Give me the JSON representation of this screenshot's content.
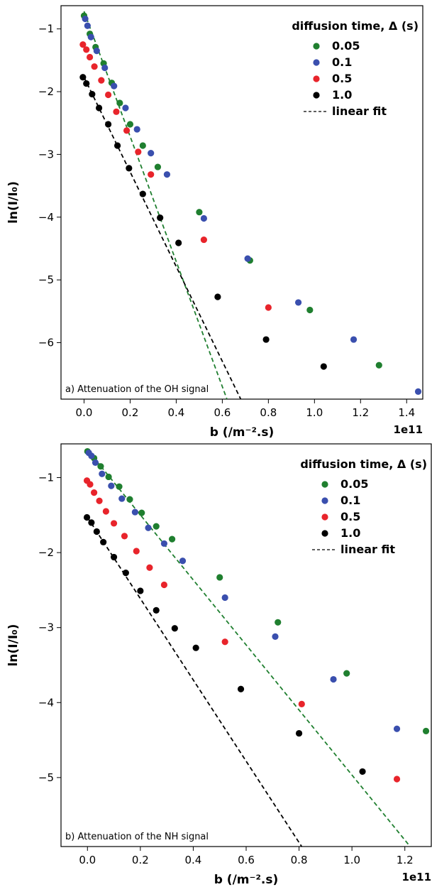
{
  "colors": {
    "green": "#1f7f2f",
    "blue": "#3a4fae",
    "red": "#e8242b",
    "black": "#000000"
  },
  "legend": {
    "title": "diffusion time, Δ (s)",
    "entries": [
      "0.05",
      "0.1",
      "0.5",
      "1.0"
    ],
    "fit_label": "linear fit"
  },
  "chart_data": [
    {
      "type": "scatter",
      "annotation": "a) Attenuation of the OH signal",
      "xlabel": "b (/m⁻².s)",
      "ylabel": "ln(I/I₀)",
      "x_multiplier": "1e11",
      "xlim": [
        -0.1,
        1.47
      ],
      "ylim": [
        -6.9,
        -0.63
      ],
      "xticks": [
        0.0,
        0.2,
        0.4,
        0.6,
        0.8,
        1.0,
        1.2,
        1.4
      ],
      "xtick_labels": [
        "0.0",
        "0.2",
        "0.4",
        "0.6",
        "0.8",
        "1.0",
        "1.2",
        "1.4"
      ],
      "yticks": [
        -1,
        -2,
        -3,
        -4,
        -5,
        -6
      ],
      "ytick_labels": [
        "−1",
        "−2",
        "−3",
        "−4",
        "−5",
        "−6"
      ],
      "legend_position": "top-right",
      "series": [
        {
          "name": "0.05",
          "color": "green",
          "x": [
            0.0,
            0.025,
            0.05,
            0.085,
            0.12,
            0.155,
            0.2,
            0.255,
            0.32,
            0.5,
            0.72,
            0.98,
            1.28
          ],
          "y": [
            -0.79,
            -1.08,
            -1.29,
            -1.55,
            -1.86,
            -2.18,
            -2.52,
            -2.86,
            -3.2,
            -3.92,
            -4.69,
            -5.48,
            -6.36
          ]
        },
        {
          "name": "0.1",
          "color": "blue",
          "x": [
            0.005,
            0.015,
            0.03,
            0.055,
            0.09,
            0.13,
            0.18,
            0.23,
            0.29,
            0.36,
            0.52,
            0.71,
            0.93,
            1.17,
            1.45
          ],
          "y": [
            -0.84,
            -0.95,
            -1.13,
            -1.35,
            -1.62,
            -1.91,
            -2.26,
            -2.6,
            -2.98,
            -3.32,
            -4.02,
            -4.66,
            -5.36,
            -5.95,
            -6.78
          ]
        },
        {
          "name": "0.5",
          "color": "red",
          "x": [
            -0.005,
            0.01,
            0.025,
            0.045,
            0.075,
            0.105,
            0.14,
            0.185,
            0.235,
            0.29,
            0.52,
            0.8
          ],
          "y": [
            -1.25,
            -1.33,
            -1.45,
            -1.6,
            -1.82,
            -2.05,
            -2.32,
            -2.62,
            -2.96,
            -3.32,
            -4.36,
            -5.44
          ]
        },
        {
          "name": "1.0",
          "color": "black",
          "x": [
            -0.005,
            0.01,
            0.035,
            0.065,
            0.105,
            0.145,
            0.195,
            0.255,
            0.33,
            0.41,
            0.58,
            0.79,
            1.04
          ],
          "y": [
            -1.77,
            -1.87,
            -2.04,
            -2.26,
            -2.52,
            -2.86,
            -3.22,
            -3.63,
            -4.01,
            -4.41,
            -5.27,
            -5.95,
            -6.38
          ]
        }
      ],
      "fits": [
        {
          "color": "green",
          "x": [
            0.0,
            0.62
          ],
          "y": [
            -0.72,
            -6.9
          ]
        },
        {
          "color": "black",
          "x": [
            0.0,
            0.68
          ],
          "y": [
            -1.77,
            -6.9
          ]
        }
      ]
    },
    {
      "type": "scatter",
      "annotation": "b) Attenuation of the NH signal",
      "xlabel": "b (/m⁻².s)",
      "ylabel": "ln(I/I₀)",
      "x_multiplier": "1e11",
      "xlim": [
        -0.1,
        1.3
      ],
      "ylim": [
        -5.92,
        -0.55
      ],
      "xticks": [
        0.0,
        0.2,
        0.4,
        0.6,
        0.8,
        1.0,
        1.2
      ],
      "xtick_labels": [
        "0.0",
        "0.2",
        "0.4",
        "0.6",
        "0.8",
        "1.0",
        "1.2"
      ],
      "yticks": [
        -1,
        -2,
        -3,
        -4,
        -5
      ],
      "ytick_labels": [
        "−1",
        "−2",
        "−3",
        "−4",
        "−5"
      ],
      "legend_position": "top-right",
      "series": [
        {
          "name": "0.05",
          "color": "green",
          "x": [
            0.0,
            0.025,
            0.05,
            0.08,
            0.12,
            0.16,
            0.205,
            0.26,
            0.32,
            0.5,
            0.72,
            0.98,
            1.28
          ],
          "y": [
            -0.65,
            -0.74,
            -0.85,
            -0.99,
            -1.12,
            -1.29,
            -1.47,
            -1.65,
            -1.82,
            -2.33,
            -2.93,
            -3.61,
            -4.38
          ]
        },
        {
          "name": "0.1",
          "color": "blue",
          "x": [
            0.005,
            0.015,
            0.03,
            0.055,
            0.09,
            0.13,
            0.18,
            0.23,
            0.29,
            0.36,
            0.52,
            0.71,
            0.93,
            1.17
          ],
          "y": [
            -0.67,
            -0.71,
            -0.8,
            -0.95,
            -1.11,
            -1.28,
            -1.46,
            -1.67,
            -1.88,
            -2.11,
            -2.6,
            -3.12,
            -3.69,
            -4.35
          ]
        },
        {
          "name": "0.5",
          "color": "red",
          "x": [
            -0.002,
            0.01,
            0.025,
            0.045,
            0.07,
            0.1,
            0.14,
            0.185,
            0.235,
            0.29,
            0.52,
            0.81,
            1.17
          ],
          "y": [
            -1.04,
            -1.09,
            -1.2,
            -1.31,
            -1.45,
            -1.61,
            -1.78,
            -1.98,
            -2.2,
            -2.43,
            -3.19,
            -4.02,
            -5.02
          ]
        },
        {
          "name": "1.0",
          "color": "black",
          "x": [
            -0.002,
            0.015,
            0.035,
            0.06,
            0.1,
            0.145,
            0.2,
            0.26,
            0.33,
            0.41,
            0.58,
            0.8,
            1.04
          ],
          "y": [
            -1.53,
            -1.6,
            -1.72,
            -1.86,
            -2.06,
            -2.27,
            -2.51,
            -2.77,
            -3.01,
            -3.27,
            -3.82,
            -4.41,
            -4.92
          ]
        }
      ],
      "fits": [
        {
          "color": "green",
          "x": [
            0.0,
            1.22
          ],
          "y": [
            -0.63,
            -5.92
          ]
        },
        {
          "color": "black",
          "x": [
            0.0,
            0.81
          ],
          "y": [
            -1.53,
            -5.92
          ]
        }
      ]
    }
  ]
}
